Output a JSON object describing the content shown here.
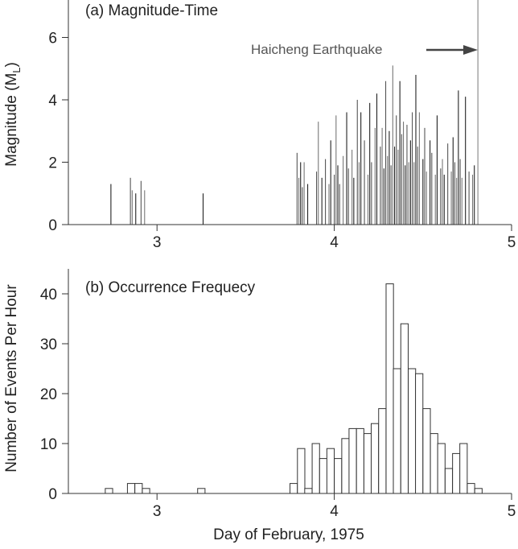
{
  "chart_data": [
    {
      "panel": "a",
      "type": "bar",
      "title": "(a) Magnitude-Time",
      "ylabel": "Magnitude (M",
      "ylabel_sub": "L",
      "ylabel_close": ")",
      "xlim": [
        2.5,
        5.0
      ],
      "ylim": [
        0,
        7.2
      ],
      "xticks": [
        3,
        4,
        5
      ],
      "xtick_labels": [
        "3",
        "4",
        "5"
      ],
      "yticks": [
        0,
        2,
        4,
        6
      ],
      "ytick_labels": [
        "0",
        "2",
        "4",
        "6"
      ],
      "annotation": "Haicheng Earthquake",
      "mainshock_day": 4.81,
      "events": {
        "day": [
          2.74,
          2.85,
          2.86,
          2.88,
          2.91,
          2.93,
          3.26,
          3.79,
          3.8,
          3.81,
          3.82,
          3.83,
          3.85,
          3.9,
          3.91,
          3.93,
          3.95,
          3.97,
          3.98,
          4.0,
          4.01,
          4.02,
          4.03,
          4.05,
          4.07,
          4.08,
          4.1,
          4.11,
          4.13,
          4.14,
          4.15,
          4.17,
          4.19,
          4.2,
          4.21,
          4.23,
          4.24,
          4.26,
          4.27,
          4.28,
          4.29,
          4.3,
          4.31,
          4.32,
          4.33,
          4.34,
          4.35,
          4.36,
          4.37,
          4.38,
          4.39,
          4.4,
          4.41,
          4.42,
          4.43,
          4.44,
          4.45,
          4.46,
          4.47,
          4.48,
          4.5,
          4.51,
          4.52,
          4.54,
          4.55,
          4.57,
          4.58,
          4.6,
          4.61,
          4.62,
          4.64,
          4.66,
          4.67,
          4.68,
          4.69,
          4.7,
          4.71,
          4.72,
          4.74,
          4.76,
          4.78,
          4.79
        ],
        "magnitude": [
          1.3,
          1.5,
          1.1,
          1.0,
          1.4,
          1.1,
          1.0,
          2.3,
          1.5,
          2.0,
          1.2,
          2.0,
          1.3,
          1.7,
          3.3,
          1.5,
          2.1,
          1.3,
          2.7,
          1.6,
          3.5,
          1.9,
          1.3,
          2.2,
          3.6,
          1.8,
          2.4,
          1.5,
          4.0,
          2.0,
          3.6,
          2.7,
          1.6,
          3.9,
          2.0,
          3.1,
          4.2,
          2.5,
          3.1,
          1.8,
          4.6,
          2.2,
          3.0,
          1.9,
          5.1,
          2.5,
          3.5,
          2.4,
          4.6,
          2.9,
          3.3,
          1.9,
          3.2,
          2.0,
          2.7,
          3.6,
          2.0,
          4.8,
          2.5,
          3.6,
          2.1,
          3.1,
          1.7,
          2.7,
          2.3,
          1.6,
          3.5,
          1.8,
          2.1,
          1.6,
          2.6,
          1.7,
          2.8,
          2.0,
          1.5,
          4.3,
          2.1,
          1.5,
          4.1,
          1.7,
          1.6,
          1.9
        ]
      }
    },
    {
      "panel": "b",
      "type": "bar",
      "title": "(b) Occurrence Frequecy",
      "xlabel": "Day of February, 1975",
      "ylabel": "Number of Events Per Hour",
      "xlim": [
        2.5,
        5.0
      ],
      "ylim": [
        0,
        45
      ],
      "xticks": [
        3,
        4,
        5
      ],
      "xtick_labels": [
        "3",
        "4",
        "5"
      ],
      "yticks": [
        0,
        10,
        20,
        30,
        40
      ],
      "ytick_labels": [
        "0",
        "10",
        "20",
        "30",
        "40"
      ],
      "bin_width_days": 0.0417,
      "bins": [
        {
          "day": 2.729,
          "count": 1
        },
        {
          "day": 2.854,
          "count": 2
        },
        {
          "day": 2.896,
          "count": 2
        },
        {
          "day": 2.938,
          "count": 1
        },
        {
          "day": 3.25,
          "count": 1
        },
        {
          "day": 3.771,
          "count": 2
        },
        {
          "day": 3.813,
          "count": 9
        },
        {
          "day": 3.854,
          "count": 1
        },
        {
          "day": 3.896,
          "count": 10
        },
        {
          "day": 3.938,
          "count": 7
        },
        {
          "day": 3.979,
          "count": 9
        },
        {
          "day": 4.021,
          "count": 7
        },
        {
          "day": 4.063,
          "count": 11
        },
        {
          "day": 4.104,
          "count": 13
        },
        {
          "day": 4.146,
          "count": 13
        },
        {
          "day": 4.188,
          "count": 12
        },
        {
          "day": 4.229,
          "count": 14
        },
        {
          "day": 4.271,
          "count": 17
        },
        {
          "day": 4.313,
          "count": 42
        },
        {
          "day": 4.354,
          "count": 25
        },
        {
          "day": 4.396,
          "count": 34
        },
        {
          "day": 4.438,
          "count": 25
        },
        {
          "day": 4.479,
          "count": 24
        },
        {
          "day": 4.521,
          "count": 17
        },
        {
          "day": 4.563,
          "count": 12
        },
        {
          "day": 4.604,
          "count": 10
        },
        {
          "day": 4.646,
          "count": 5
        },
        {
          "day": 4.688,
          "count": 8
        },
        {
          "day": 4.729,
          "count": 10
        },
        {
          "day": 4.771,
          "count": 2
        },
        {
          "day": 4.813,
          "count": 1
        }
      ]
    }
  ]
}
